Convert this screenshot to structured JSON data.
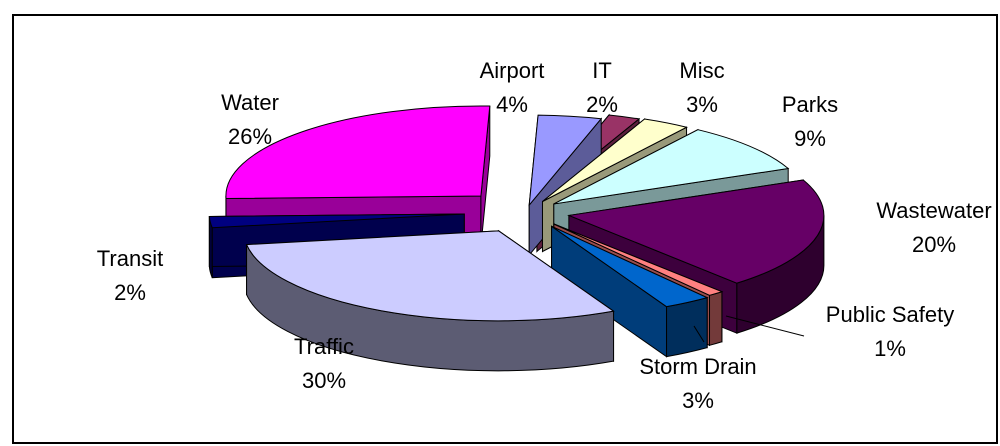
{
  "chart_data": {
    "type": "pie",
    "title": "",
    "categories": [
      "Airport",
      "IT",
      "Misc",
      "Parks",
      "Wastewater",
      "Public Safety",
      "Storm Drain",
      "Traffic",
      "Transit",
      "Water"
    ],
    "values": [
      4,
      2,
      3,
      9,
      20,
      1,
      3,
      30,
      2,
      26
    ],
    "value_labels": [
      "4%",
      "2%",
      "3%",
      "9%",
      "20%",
      "1%",
      "3%",
      "30%",
      "2%",
      "26%"
    ],
    "colors": {
      "Airport": "#9999ff",
      "IT": "#993366",
      "Misc": "#ffffcc",
      "Parks": "#ccffff",
      "Wastewater": "#660066",
      "Public Safety": "#ff8080",
      "Storm Drain": "#0066cc",
      "Traffic": "#ccccff",
      "Transit": "#000080",
      "Water": "#ff00ff"
    },
    "legend": "none"
  }
}
